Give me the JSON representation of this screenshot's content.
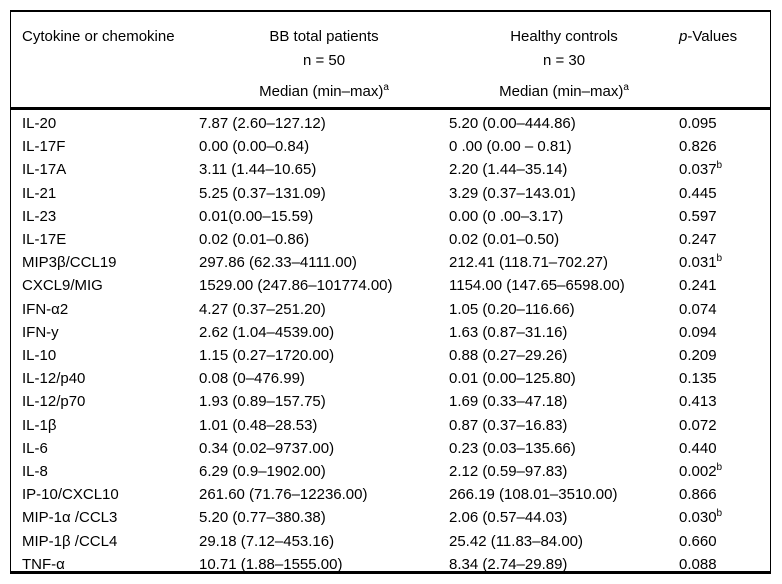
{
  "table": {
    "headers": {
      "col1": "Cytokine or chemokine",
      "col2_title": "BB total patients",
      "col2_n": "n = 50",
      "col3_title": "Healthy controls",
      "col3_n": "n = 30",
      "median_label": "Median (min–max)",
      "median_sup": "a",
      "p_italic": "p",
      "p_rest": "-Values"
    },
    "rows": [
      {
        "name": "IL-20",
        "bb": "7.87 (2.60–127.12)",
        "hc": "5.20 (0.00–444.86)",
        "p": "0.095",
        "p_sup": ""
      },
      {
        "name": "IL-17F",
        "bb": "0.00 (0.00–0.84)",
        "hc": "0 .00 (0.00 – 0.81)",
        "p": "0.826",
        "p_sup": ""
      },
      {
        "name": "IL-17A",
        "bb": "3.11 (1.44–10.65)",
        "hc": "2.20 (1.44–35.14)",
        "p": "0.037",
        "p_sup": "b"
      },
      {
        "name": "IL-21",
        "bb": "5.25 (0.37–131.09)",
        "hc": "3.29 (0.37–143.01)",
        "p": "0.445",
        "p_sup": ""
      },
      {
        "name": "IL-23",
        "bb": "0.01(0.00–15.59)",
        "hc": "0.00 (0 .00–3.17)",
        "p": "0.597",
        "p_sup": ""
      },
      {
        "name": "IL-17E",
        "bb": "0.02 (0.01–0.86)",
        "hc": "0.02 (0.01–0.50)",
        "p": "0.247",
        "p_sup": ""
      },
      {
        "name": "MIP3β/CCL19",
        "bb": "297.86 (62.33–4111.00)",
        "hc": "212.41 (118.71–702.27)",
        "p": "0.031",
        "p_sup": "b"
      },
      {
        "name": "CXCL9/MIG",
        "bb": "1529.00 (247.86–101774.00)",
        "hc": "1154.00 (147.65–6598.00)",
        "p": "0.241",
        "p_sup": ""
      },
      {
        "name": "IFN-α2",
        "bb": "4.27 (0.37–251.20)",
        "hc": "1.05 (0.20–116.66)",
        "p": "0.074",
        "p_sup": ""
      },
      {
        "name": "IFN-y",
        "bb": "2.62 (1.04–4539.00)",
        "hc": "1.63 (0.87–31.16)",
        "p": "0.094",
        "p_sup": ""
      },
      {
        "name": "IL-10",
        "bb": "1.15 (0.27–1720.00)",
        "hc": "0.88 (0.27–29.26)",
        "p": "0.209",
        "p_sup": ""
      },
      {
        "name": "IL-12/p40",
        "bb": "0.08 (0–476.99)",
        "hc": "0.01 (0.00–125.80)",
        "p": "0.135",
        "p_sup": ""
      },
      {
        "name": "IL-12/p70",
        "bb": "1.93 (0.89–157.75)",
        "hc": "1.69 (0.33–47.18)",
        "p": "0.413",
        "p_sup": ""
      },
      {
        "name": "IL-1β",
        "bb": "1.01 (0.48–28.53)",
        "hc": "0.87 (0.37–16.83)",
        "p": "0.072",
        "p_sup": ""
      },
      {
        "name": "IL-6",
        "bb": "0.34 (0.02–9737.00)",
        "hc": "0.23 (0.03–135.66)",
        "p": "0.440",
        "p_sup": ""
      },
      {
        "name": "IL-8",
        "bb": "6.29 (0.9–1902.00)",
        "hc": "2.12 (0.59–97.83)",
        "p": "0.002",
        "p_sup": "b"
      },
      {
        "name": "IP-10/CXCL10",
        "bb": "261.60 (71.76–12236.00)",
        "hc": "266.19 (108.01–3510.00)",
        "p": "0.866",
        "p_sup": ""
      },
      {
        "name": "MIP-1α /CCL3",
        "bb": "5.20 (0.77–380.38)",
        "hc": "2.06 (0.57–44.03)",
        "p": "0.030",
        "p_sup": "b"
      },
      {
        "name": "MIP-1β /CCL4",
        "bb": "29.18 (7.12–453.16)",
        "hc": "25.42 (11.83–84.00)",
        "p": "0.660",
        "p_sup": ""
      },
      {
        "name": "TNF-α",
        "bb": "10.71 (1.88–1555.00)",
        "hc": "8.34 (2.74–29.89)",
        "p": "0.088",
        "p_sup": ""
      }
    ]
  }
}
